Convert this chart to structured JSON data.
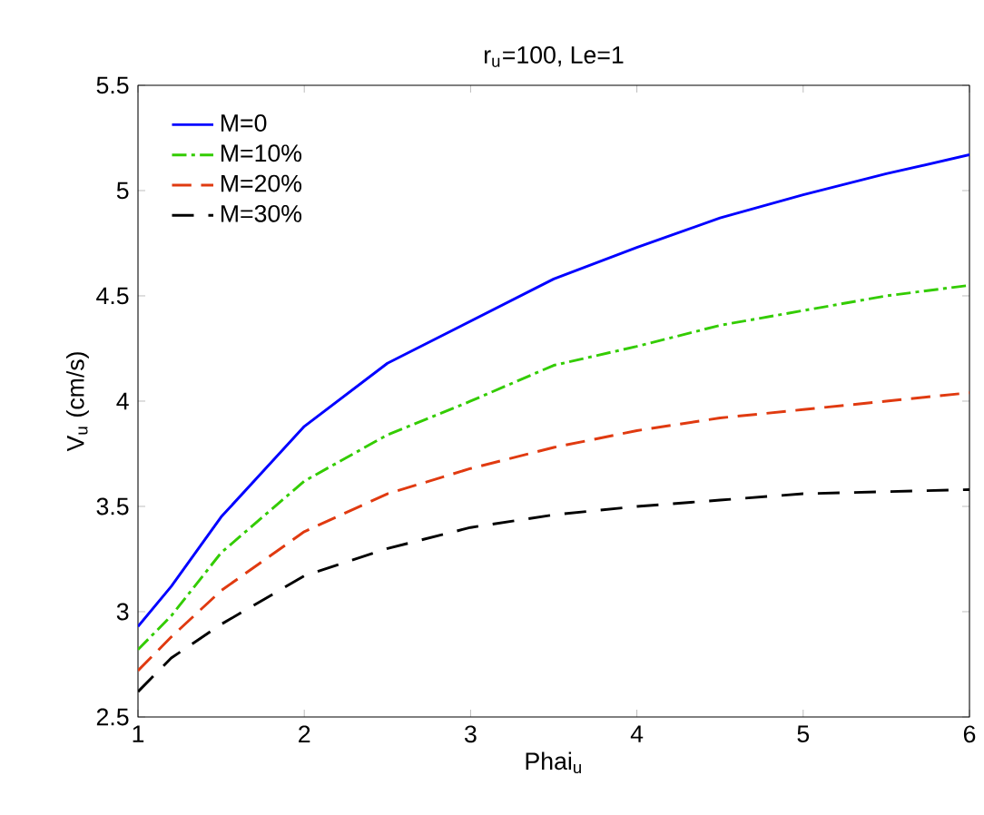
{
  "chart_data": {
    "type": "line",
    "title": "r$_{u}$=100, Le=1",
    "xlabel": "Phai$_{u}$",
    "ylabel": "V$_{u}$ (cm/s)",
    "x": [
      1,
      1.2,
      1.5,
      2,
      2.5,
      3,
      3.5,
      4,
      4.5,
      5,
      5.5,
      6
    ],
    "series": [
      {
        "name": "M=0",
        "color": "#0000ff",
        "line_style": "solid",
        "values": [
          2.93,
          3.12,
          3.45,
          3.88,
          4.18,
          4.38,
          4.58,
          4.73,
          4.87,
          4.98,
          5.08,
          5.17
        ]
      },
      {
        "name": "M=10%",
        "color": "#33cc00",
        "line_style": "dashed",
        "values": [
          2.82,
          2.98,
          3.28,
          3.62,
          3.84,
          4.0,
          4.17,
          4.26,
          4.36,
          4.43,
          4.5,
          4.55
        ]
      },
      {
        "name": "M=20%",
        "color": "#e03a10",
        "line_style": "dashed",
        "values": [
          2.72,
          2.88,
          3.1,
          3.38,
          3.56,
          3.68,
          3.78,
          3.86,
          3.92,
          3.96,
          4.0,
          4.04
        ]
      },
      {
        "name": "M=30%",
        "color": "#000000",
        "line_style": "dashed",
        "values": [
          2.62,
          2.78,
          2.94,
          3.17,
          3.3,
          3.4,
          3.46,
          3.5,
          3.53,
          3.56,
          3.57,
          3.58
        ]
      }
    ],
    "xlim": [
      1,
      6
    ],
    "ylim": [
      2.5,
      5.5
    ],
    "xticks": [
      1,
      2,
      3,
      4,
      5,
      6
    ],
    "yticks": [
      2.5,
      3,
      3.5,
      4,
      4.5,
      5,
      5.5
    ],
    "legend": "top left",
    "grid": false,
    "marker": "none"
  }
}
